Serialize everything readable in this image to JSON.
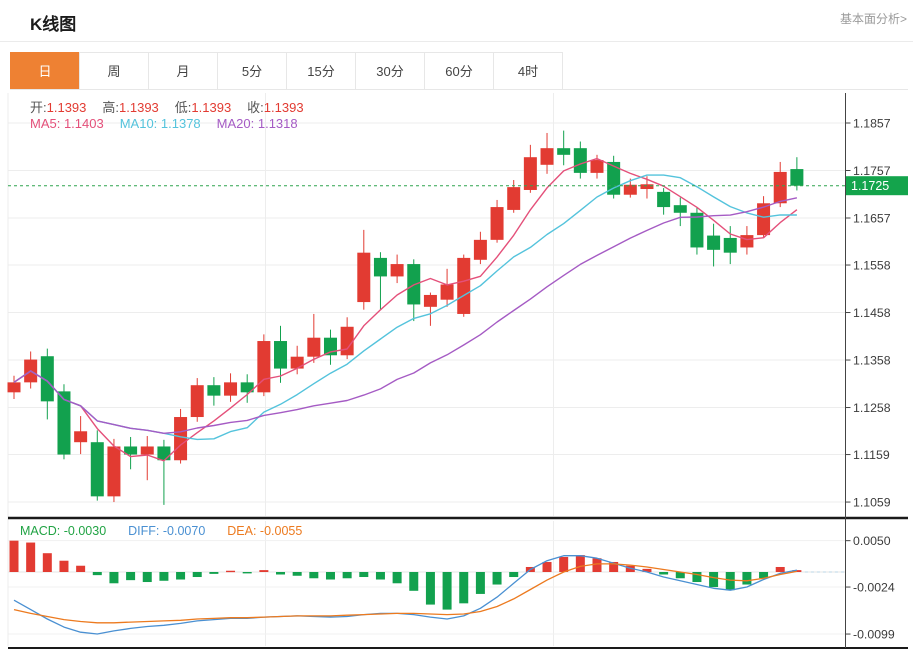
{
  "header": {
    "title": "K线图",
    "link": "基本面分析>"
  },
  "tabs": [
    {
      "label": "日",
      "name": "tab-day",
      "active": true
    },
    {
      "label": "周",
      "name": "tab-week",
      "active": false
    },
    {
      "label": "月",
      "name": "tab-month",
      "active": false
    },
    {
      "label": "5分",
      "name": "tab-5min",
      "active": false
    },
    {
      "label": "15分",
      "name": "tab-15min",
      "active": false
    },
    {
      "label": "30分",
      "name": "tab-30min",
      "active": false
    },
    {
      "label": "60分",
      "name": "tab-60min",
      "active": false
    },
    {
      "label": "4时",
      "name": "tab-4hour",
      "active": false
    }
  ],
  "legend": {
    "ohlc": [
      {
        "label": "开:",
        "value": "1.1393"
      },
      {
        "label": "高:",
        "value": "1.1393"
      },
      {
        "label": "低:",
        "value": "1.1393"
      },
      {
        "label": "收:",
        "value": "1.1393"
      }
    ],
    "ma": [
      {
        "label": "MA5:",
        "value": "1.1403",
        "key": "ma5"
      },
      {
        "label": "MA10:",
        "value": "1.1378",
        "key": "ma10"
      },
      {
        "label": "MA20:",
        "value": "1.1318",
        "key": "ma20"
      }
    ],
    "macd": [
      {
        "label": "MACD:",
        "value": "-0.0030",
        "key": "macd_text"
      },
      {
        "label": "DIFF:",
        "value": "-0.0070",
        "key": "diff"
      },
      {
        "label": "DEA:",
        "value": "-0.0055",
        "key": "dea"
      }
    ]
  },
  "colors": {
    "up": "#e23b32",
    "down": "#12a14e",
    "tab_active_bg": "#ee8133",
    "badge_bg": "#14a44c",
    "current_line": "#2fa44f",
    "ma5": "#e4507a",
    "ma10": "#54c3dc",
    "ma20": "#a55bc4",
    "diff": "#4a90d2",
    "dea": "#ec7a1f",
    "macd_text": "#21a344",
    "grid": "#ededed",
    "axis_text": "#3c3c3c"
  },
  "chart_data": {
    "type": "candlestick",
    "title": "K线图 (daily K-line with MA5/MA10/MA20 and MACD)",
    "main": {
      "y_ticks": [
        "1.1857",
        "1.1757",
        "1.1657",
        "1.1558",
        "1.1458",
        "1.1358",
        "1.1258",
        "1.1159",
        "1.1059"
      ],
      "ylim": [
        1.104,
        1.19
      ],
      "current_price": 1.1725,
      "current_price_label": "1.1725",
      "ma_periods": [
        5,
        10,
        20
      ],
      "candles_format": [
        "open",
        "high",
        "low",
        "close"
      ],
      "candles": [
        [
          1.129,
          1.1325,
          1.1276,
          1.1311
        ],
        [
          1.1311,
          1.1376,
          1.1298,
          1.1359
        ],
        [
          1.1366,
          1.1382,
          1.1233,
          1.1271
        ],
        [
          1.1292,
          1.1307,
          1.1149,
          1.1159
        ],
        [
          1.1185,
          1.124,
          1.116,
          1.1208
        ],
        [
          1.1185,
          1.121,
          1.1062,
          1.1071
        ],
        [
          1.1071,
          1.1192,
          1.1059,
          1.1176
        ],
        [
          1.1176,
          1.1196,
          1.1128,
          1.1159
        ],
        [
          1.1159,
          1.1198,
          1.1105,
          1.1176
        ],
        [
          1.1176,
          1.119,
          1.1053,
          1.1147
        ],
        [
          1.1147,
          1.1255,
          1.114,
          1.1238
        ],
        [
          1.1238,
          1.132,
          1.1228,
          1.1305
        ],
        [
          1.1305,
          1.1322,
          1.1262,
          1.1283
        ],
        [
          1.1283,
          1.133,
          1.127,
          1.1311
        ],
        [
          1.1311,
          1.1328,
          1.1268,
          1.129
        ],
        [
          1.129,
          1.1412,
          1.1282,
          1.1398
        ],
        [
          1.1398,
          1.143,
          1.131,
          1.134
        ],
        [
          1.134,
          1.1388,
          1.1328,
          1.1365
        ],
        [
          1.1365,
          1.1455,
          1.1352,
          1.1405
        ],
        [
          1.1405,
          1.1422,
          1.1348,
          1.1368
        ],
        [
          1.1368,
          1.1448,
          1.136,
          1.1428
        ],
        [
          1.148,
          1.1632,
          1.1464,
          1.1584
        ],
        [
          1.1573,
          1.1585,
          1.1465,
          1.1534
        ],
        [
          1.1534,
          1.158,
          1.152,
          1.156
        ],
        [
          1.156,
          1.157,
          1.144,
          1.1475
        ],
        [
          1.147,
          1.15,
          1.143,
          1.1495
        ],
        [
          1.1485,
          1.155,
          1.147,
          1.1517
        ],
        [
          1.1455,
          1.158,
          1.1449,
          1.1573
        ],
        [
          1.1569,
          1.1628,
          1.156,
          1.1611
        ],
        [
          1.1611,
          1.1695,
          1.1605,
          1.168
        ],
        [
          1.1674,
          1.1737,
          1.1668,
          1.1722
        ],
        [
          1.1716,
          1.1811,
          1.171,
          1.1785
        ],
        [
          1.1769,
          1.1836,
          1.175,
          1.1804
        ],
        [
          1.1804,
          1.1841,
          1.1768,
          1.179
        ],
        [
          1.1804,
          1.1818,
          1.174,
          1.1752
        ],
        [
          1.1752,
          1.179,
          1.174,
          1.1779
        ],
        [
          1.1775,
          1.1788,
          1.1698,
          1.1706
        ],
        [
          1.1706,
          1.174,
          1.17,
          1.1727
        ],
        [
          1.1718,
          1.1745,
          1.1698,
          1.1728
        ],
        [
          1.1712,
          1.172,
          1.1664,
          1.168
        ],
        [
          1.1684,
          1.17,
          1.164,
          1.1668
        ],
        [
          1.1668,
          1.168,
          1.158,
          1.1595
        ],
        [
          1.162,
          1.1645,
          1.1555,
          1.159
        ],
        [
          1.1615,
          1.164,
          1.156,
          1.1584
        ],
        [
          1.1595,
          1.164,
          1.158,
          1.1621
        ],
        [
          1.1621,
          1.1703,
          1.1615,
          1.1688
        ],
        [
          1.1688,
          1.1775,
          1.168,
          1.1754
        ],
        [
          1.176,
          1.1785,
          1.1715,
          1.1725
        ]
      ]
    },
    "macd": {
      "y_ticks": [
        "0.0050",
        "-0.0024",
        "-0.0099"
      ],
      "hist": [
        0.005,
        0.0047,
        0.003,
        0.0018,
        0.001,
        -0.0005,
        -0.0018,
        -0.0013,
        -0.0016,
        -0.0014,
        -0.0012,
        -0.0008,
        -0.0003,
        0.0002,
        -0.0002,
        0.0003,
        -0.0004,
        -0.0006,
        -0.001,
        -0.0012,
        -0.001,
        -0.0008,
        -0.0012,
        -0.0018,
        -0.003,
        -0.0052,
        -0.006,
        -0.005,
        -0.0035,
        -0.002,
        -0.0008,
        0.0008,
        0.0016,
        0.0024,
        0.0027,
        0.0022,
        0.0016,
        0.001,
        0.0005,
        -0.0004,
        -0.001,
        -0.0016,
        -0.0024,
        -0.0029,
        -0.002,
        -0.001,
        0.0008,
        0.0003
      ],
      "diff": [
        -0.0045,
        -0.006,
        -0.0075,
        -0.0088,
        -0.0096,
        -0.0099,
        -0.0094,
        -0.009,
        -0.0087,
        -0.0085,
        -0.0082,
        -0.0078,
        -0.0076,
        -0.0074,
        -0.0074,
        -0.0072,
        -0.0071,
        -0.007,
        -0.0071,
        -0.0072,
        -0.0071,
        -0.0068,
        -0.0066,
        -0.0066,
        -0.0068,
        -0.0072,
        -0.0075,
        -0.007,
        -0.0058,
        -0.004,
        -0.0018,
        0.0004,
        0.0018,
        0.0026,
        0.0026,
        0.0022,
        0.0014,
        0.0006,
        0.0,
        -0.0008,
        -0.0014,
        -0.002,
        -0.0026,
        -0.0029,
        -0.0024,
        -0.0012,
        -0.0002,
        0.0003
      ],
      "dea": [
        -0.006,
        -0.0066,
        -0.0071,
        -0.0076,
        -0.0079,
        -0.0081,
        -0.0081,
        -0.008,
        -0.0079,
        -0.0078,
        -0.0077,
        -0.0075,
        -0.0074,
        -0.0073,
        -0.0073,
        -0.0072,
        -0.0071,
        -0.007,
        -0.007,
        -0.007,
        -0.0069,
        -0.0068,
        -0.0067,
        -0.0066,
        -0.0066,
        -0.0067,
        -0.0068,
        -0.0067,
        -0.0063,
        -0.0055,
        -0.0043,
        -0.0028,
        -0.0013,
        0.0,
        0.0009,
        0.0013,
        0.0013,
        0.0011,
        0.0008,
        0.0004,
        0.0,
        -0.0004,
        -0.0009,
        -0.0013,
        -0.0014,
        -0.001,
        -0.0004,
        0.0001
      ]
    }
  }
}
